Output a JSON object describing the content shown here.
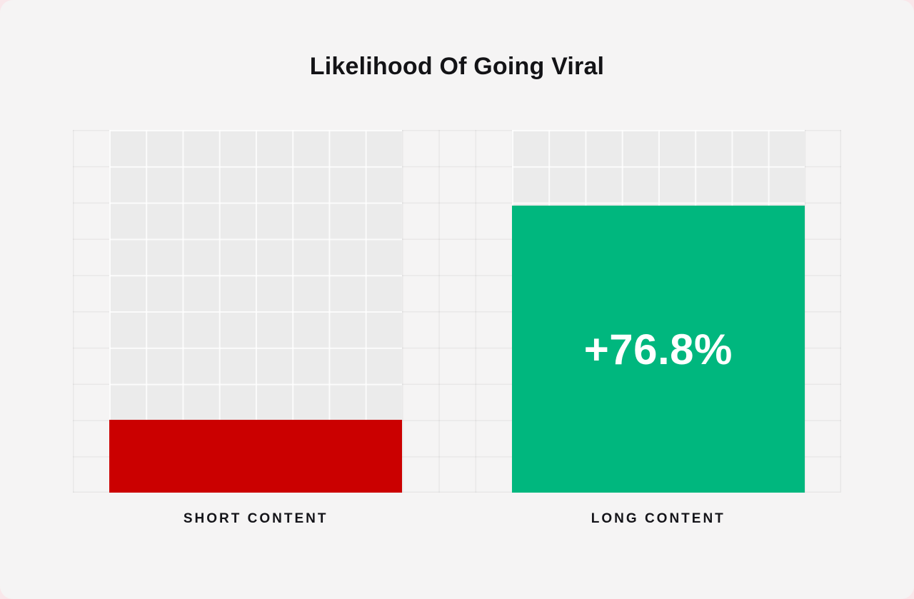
{
  "page": {
    "background_color": "#f9e7ea",
    "card_background_color": "#f5f4f4"
  },
  "chart_data": {
    "type": "bar",
    "title": "Likelihood Of Going Viral",
    "categories": [
      "SHORT CONTENT",
      "LONG CONTENT"
    ],
    "values": [
      20,
      79
    ],
    "ylim": [
      0,
      100
    ],
    "grid": {
      "visible": true,
      "columns": 21,
      "rows": 10
    },
    "legend_position": "none",
    "xlabel": "",
    "ylabel": "",
    "annotations": [
      "+76.8%"
    ],
    "bars": [
      {
        "category": "SHORT CONTENT",
        "height_pct": "20%",
        "color": "#cb0000",
        "value_label": ""
      },
      {
        "category": "LONG CONTENT",
        "height_pct": "79.1%",
        "color": "#00b77e",
        "value_label": "+76.8%"
      }
    ]
  }
}
